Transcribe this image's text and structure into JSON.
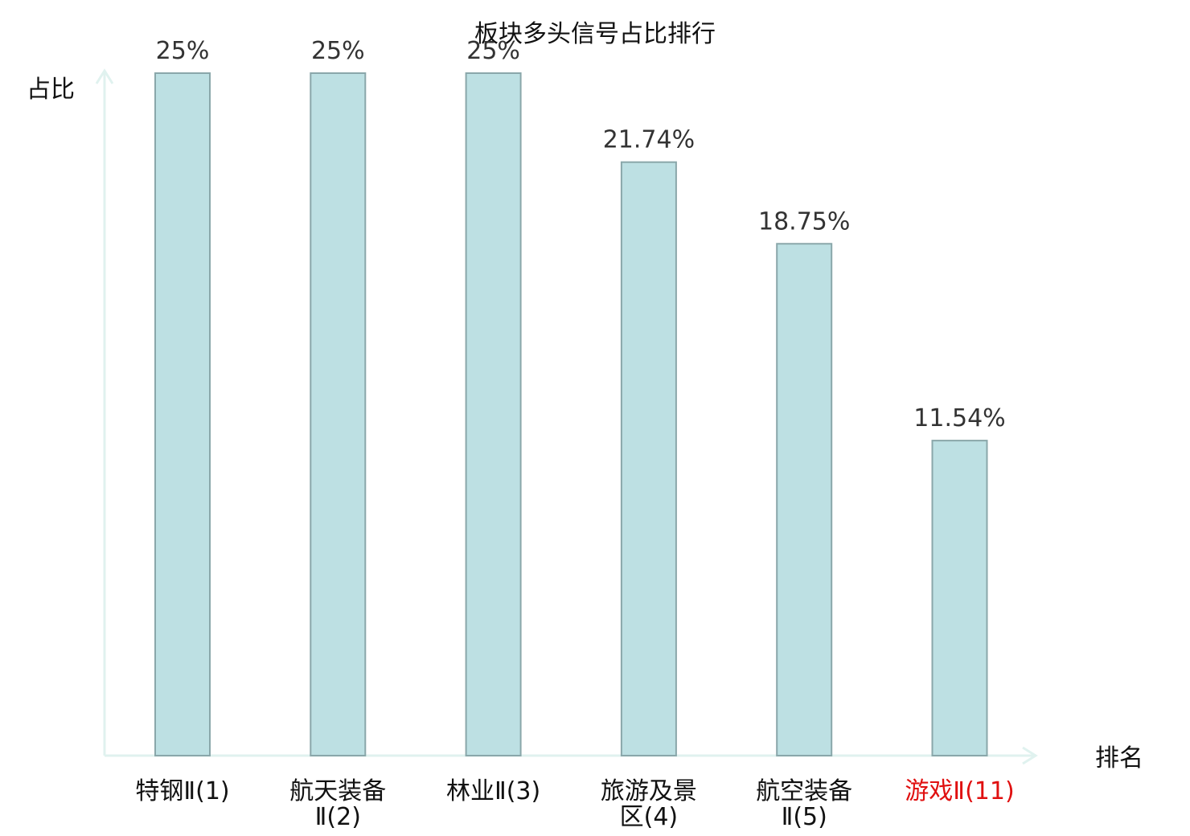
{
  "chart_data": {
    "type": "bar",
    "title": "板块多头信号占比排行",
    "ylabel": "占比",
    "xlabel": "排名",
    "categories": [
      {
        "lines": [
          "特钢Ⅱ(1)"
        ],
        "highlight": false
      },
      {
        "lines": [
          "航天装备",
          "Ⅱ(2)"
        ],
        "highlight": false
      },
      {
        "lines": [
          "林业Ⅱ(3)"
        ],
        "highlight": false
      },
      {
        "lines": [
          "旅游及景",
          "区(4)"
        ],
        "highlight": false
      },
      {
        "lines": [
          "航空装备",
          "Ⅱ(5)"
        ],
        "highlight": false
      },
      {
        "lines": [
          "游戏Ⅱ(11)"
        ],
        "highlight": true
      }
    ],
    "values": [
      25,
      25,
      25,
      21.74,
      18.75,
      11.54
    ],
    "value_labels": [
      "25%",
      "25%",
      "25%",
      "21.74%",
      "18.75%",
      "11.54%"
    ],
    "ylim": [
      0,
      25
    ],
    "grid": false,
    "colors": {
      "bar_fill": "#bde0e3",
      "bar_stroke": "#8aa7aa",
      "axis": "#e0f2ef",
      "text": "#333333",
      "category_text": "#111111",
      "highlight_text": "#e01010"
    }
  }
}
